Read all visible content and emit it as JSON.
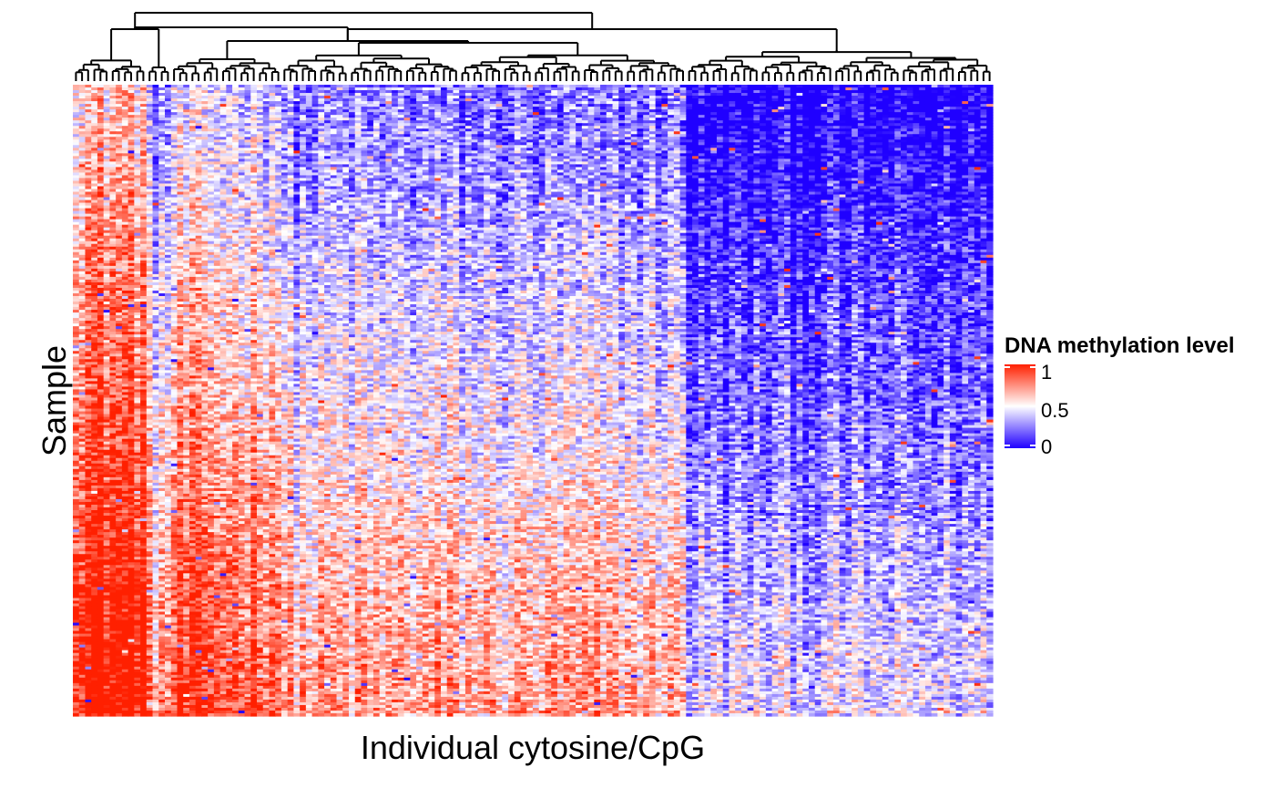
{
  "chart_data": {
    "type": "heatmap",
    "xlabel": "Individual cytosine/CpG",
    "ylabel": "Sample",
    "legend": {
      "title": "DNA methylation level",
      "ticks": [
        "1",
        "0.5",
        "0"
      ],
      "tick_values": [
        1,
        0.5,
        0
      ],
      "placement": "right"
    },
    "colorscale": {
      "low": "#2000ff",
      "mid": "#ffffff",
      "high": "#ff2000"
    },
    "value_range": [
      0,
      1
    ],
    "n_columns": 150,
    "n_rows": 230,
    "dendrogram": "columns",
    "cluster_mean_methylation": [
      {
        "cluster": 1,
        "columns": [
          0,
          11
        ],
        "mean": 0.9
      },
      {
        "cluster": 2,
        "columns": [
          12,
          15
        ],
        "mean": 0.55
      },
      {
        "cluster": 3,
        "columns": [
          16,
          33
        ],
        "mean": 0.7
      },
      {
        "cluster": 4,
        "columns": [
          34,
          62
        ],
        "mean": 0.5
      },
      {
        "cluster": 5,
        "columns": [
          63,
          99
        ],
        "mean": 0.48
      },
      {
        "cluster": 6,
        "columns": [
          100,
          149
        ],
        "mean": 0.22
      }
    ]
  }
}
